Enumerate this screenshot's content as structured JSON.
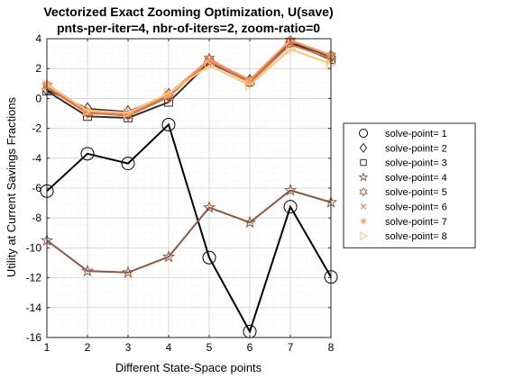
{
  "chart_data": {
    "type": "line",
    "title": "Vectorized Exact Zooming Optimization, U(save)",
    "subtitle": "pnts-per-iter=4, nbr-of-iters=2, zoom-ratio=0",
    "xlabel": "Different State-Space points",
    "ylabel": "Utility at Current Savings Fractions",
    "xlim": [
      1,
      8
    ],
    "ylim": [
      -16,
      4
    ],
    "xticks": [
      1,
      2,
      3,
      4,
      5,
      6,
      7,
      8
    ],
    "yticks": [
      -16,
      -14,
      -12,
      -10,
      -8,
      -6,
      -4,
      -2,
      0,
      2,
      4
    ],
    "grid": true,
    "minor_grid": true,
    "legend_position": "outside-right",
    "x": [
      1,
      2,
      3,
      4,
      5,
      6,
      7,
      8
    ],
    "series": [
      {
        "name": "solve-point=    1",
        "marker": "circle",
        "color": "#000000",
        "values": [
          -6.2,
          -3.7,
          -4.35,
          -1.75,
          -10.65,
          -15.6,
          -7.25,
          -11.95
        ]
      },
      {
        "name": "solve-point=    2",
        "marker": "diamond",
        "color": "#2a2a2a",
        "values": [
          0.6,
          -0.7,
          -0.9,
          0.25,
          2.55,
          1.2,
          3.8,
          2.8
        ]
      },
      {
        "name": "solve-point=    3",
        "marker": "square",
        "color": "#3d2c22",
        "values": [
          0.5,
          -1.2,
          -1.3,
          -0.25,
          2.4,
          1.1,
          3.75,
          2.6
        ]
      },
      {
        "name": "solve-point=    4",
        "marker": "star",
        "color": "#8a5a42",
        "values": [
          -9.5,
          -11.55,
          -11.65,
          -10.6,
          -7.3,
          -8.3,
          -6.15,
          -6.95
        ]
      },
      {
        "name": "solve-point=    5",
        "marker": "hexagram",
        "color": "#b86a47",
        "values": [
          0.85,
          -0.95,
          -1.15,
          0.1,
          2.65,
          1.15,
          3.85,
          2.85
        ]
      },
      {
        "name": "solve-point=    6",
        "marker": "x",
        "color": "#d4794f",
        "values": [
          0.75,
          -1.0,
          -1.1,
          0.15,
          2.5,
          1.05,
          3.6,
          2.7
        ]
      },
      {
        "name": "solve-point=    7",
        "marker": "asterisk",
        "color": "#f09a6a",
        "values": [
          0.95,
          -0.85,
          -1.0,
          0.3,
          2.6,
          1.25,
          3.9,
          2.9
        ]
      },
      {
        "name": "solve-point=    8",
        "marker": "triangle-right",
        "color": "#ffc27a",
        "values": [
          0.9,
          -0.8,
          -0.95,
          0.35,
          2.2,
          0.9,
          3.3,
          2.3
        ]
      }
    ]
  }
}
